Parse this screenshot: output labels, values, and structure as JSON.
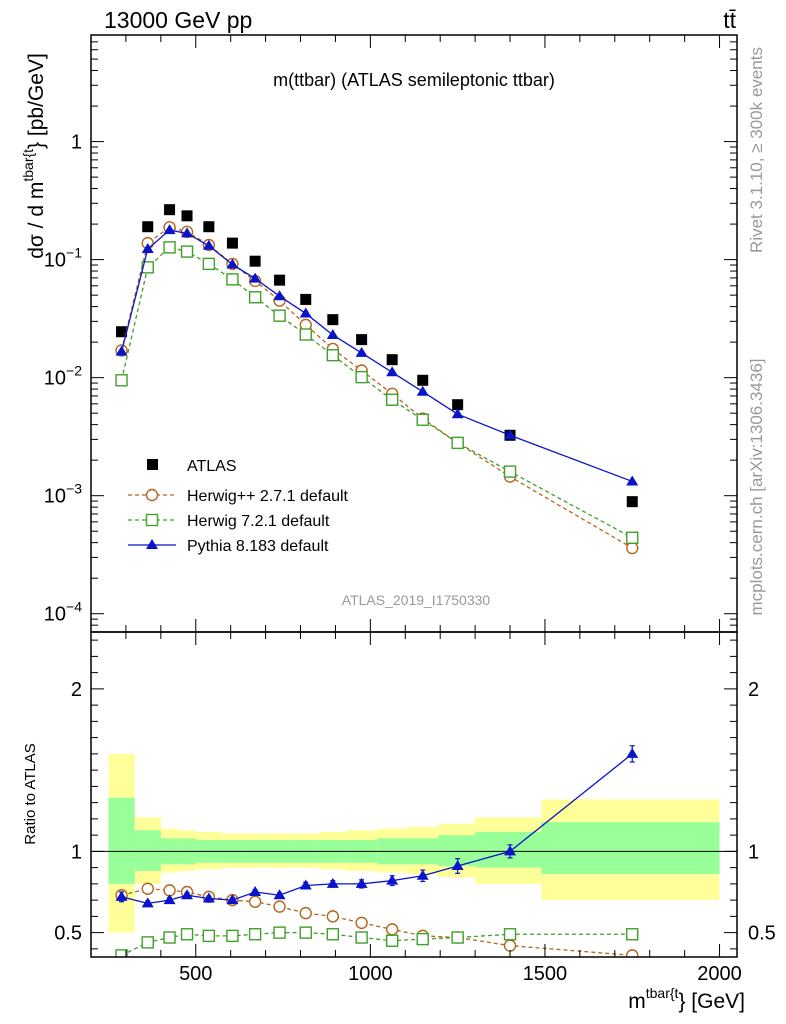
{
  "header": {
    "energy_label": "13000 GeV pp",
    "process_label": "tt̄",
    "side_rivet": "Rivet 3.1.10, ≥ 300k events",
    "side_mcplots": "mcplots.cern.ch [arXiv:1306.3436]"
  },
  "colors": {
    "atlas": "#000000",
    "herwigpp": "#b5651d",
    "herwig7": "#3fa02a",
    "pythia": "#0a14c8",
    "band_stat": "#99ff99",
    "band_syst": "#ffff99",
    "analysis_id": "#999999"
  },
  "chart_data": [
    {
      "type": "scatter",
      "title": "m(ttbar) (ATLAS semileptonic ttbar)",
      "analysis_id": "ATLAS_2019_I1750330",
      "yscale": "log",
      "ylabel": "dσ / d m^{tbar{t}} [pb/GeV]",
      "ylabel_main": "dσ / d m",
      "ylabel_sup": "tbar{t",
      "ylabel_unit": "} [pb/GeV]",
      "xlim": [
        200,
        2050
      ],
      "ylim": [
        7e-05,
        8
      ],
      "y_ticks": [
        {
          "value": 0.0001,
          "base": "10",
          "exp": "−4"
        },
        {
          "value": 0.001,
          "base": "10",
          "exp": "−3"
        },
        {
          "value": 0.01,
          "base": "10",
          "exp": "−2"
        },
        {
          "value": 0.1,
          "base": "10",
          "exp": "−1"
        },
        {
          "value": 1,
          "base": "1",
          "exp": ""
        }
      ],
      "legend_position": "lower-left",
      "x": [
        287.5,
        362.5,
        425,
        475,
        537.5,
        605,
        670,
        740,
        815,
        892.5,
        975,
        1062.5,
        1150,
        1250,
        1400,
        1750
      ],
      "series": [
        {
          "name": "ATLAS",
          "key": "atlas",
          "marker": "filled-square",
          "line": "none",
          "values": [
            0.0245,
            0.19,
            0.265,
            0.235,
            0.19,
            0.138,
            0.097,
            0.067,
            0.046,
            0.031,
            0.021,
            0.0142,
            0.0095,
            0.0059,
            0.00325,
            0.00089
          ]
        },
        {
          "name": "Herwig++ 2.7.1 default",
          "key": "herwigpp",
          "marker": "open-circle",
          "line": "dashed",
          "values": [
            0.017,
            0.138,
            0.188,
            0.172,
            0.133,
            0.092,
            0.066,
            0.045,
            0.028,
            0.0175,
            0.0115,
            0.0073,
            0.0045,
            0.0028,
            0.00145,
            0.00036
          ]
        },
        {
          "name": "Herwig 7.2.1 default",
          "key": "herwig7",
          "marker": "open-square",
          "line": "dashed",
          "values": [
            0.0095,
            0.086,
            0.127,
            0.117,
            0.092,
            0.068,
            0.048,
            0.0335,
            0.0232,
            0.0155,
            0.0101,
            0.0065,
            0.0044,
            0.0028,
            0.0016,
            0.00044
          ]
        },
        {
          "name": "Pythia 8.183 default",
          "key": "pythia",
          "marker": "filled-triangle",
          "line": "solid",
          "values": [
            0.0166,
            0.123,
            0.178,
            0.167,
            0.131,
            0.091,
            0.069,
            0.049,
            0.035,
            0.023,
            0.0162,
            0.0111,
            0.0076,
            0.0049,
            0.00325,
            0.00132
          ]
        }
      ]
    },
    {
      "type": "scatter",
      "ylabel": "Ratio to ATLAS",
      "xlabel_main": "m",
      "xlabel_sup": "tbar{t",
      "xlabel_unit": "} [GeV]",
      "xlim": [
        200,
        2050
      ],
      "ylim": [
        0.35,
        2.35
      ],
      "y_ticks": [
        0.5,
        1,
        2
      ],
      "y_tick_labels": [
        "0.5",
        "1",
        "2"
      ],
      "x_ticks": [
        500,
        1000,
        1500,
        2000
      ],
      "x_tick_labels": [
        "500",
        "1000",
        "1500",
        "2000"
      ],
      "reference_line": 1,
      "bins": [
        {
          "lo": 250,
          "hi": 325,
          "syst": [
            0.5,
            1.6
          ],
          "stat": [
            0.8,
            1.33
          ]
        },
        {
          "lo": 325,
          "hi": 400,
          "syst": [
            0.8,
            1.21
          ],
          "stat": [
            0.88,
            1.13
          ]
        },
        {
          "lo": 400,
          "hi": 450,
          "syst": [
            0.87,
            1.14
          ],
          "stat": [
            0.92,
            1.08
          ]
        },
        {
          "lo": 450,
          "hi": 500,
          "syst": [
            0.88,
            1.13
          ],
          "stat": [
            0.92,
            1.08
          ]
        },
        {
          "lo": 500,
          "hi": 575,
          "syst": [
            0.89,
            1.12
          ],
          "stat": [
            0.93,
            1.07
          ]
        },
        {
          "lo": 575,
          "hi": 635,
          "syst": [
            0.9,
            1.11
          ],
          "stat": [
            0.93,
            1.07
          ]
        },
        {
          "lo": 635,
          "hi": 705,
          "syst": [
            0.9,
            1.11
          ],
          "stat": [
            0.93,
            1.07
          ]
        },
        {
          "lo": 705,
          "hi": 775,
          "syst": [
            0.9,
            1.11
          ],
          "stat": [
            0.93,
            1.07
          ]
        },
        {
          "lo": 775,
          "hi": 855,
          "syst": [
            0.9,
            1.11
          ],
          "stat": [
            0.93,
            1.07
          ]
        },
        {
          "lo": 855,
          "hi": 930,
          "syst": [
            0.89,
            1.12
          ],
          "stat": [
            0.93,
            1.07
          ]
        },
        {
          "lo": 930,
          "hi": 1020,
          "syst": [
            0.88,
            1.13
          ],
          "stat": [
            0.93,
            1.07
          ]
        },
        {
          "lo": 1020,
          "hi": 1105,
          "syst": [
            0.87,
            1.14
          ],
          "stat": [
            0.92,
            1.08
          ]
        },
        {
          "lo": 1105,
          "hi": 1195,
          "syst": [
            0.86,
            1.15
          ],
          "stat": [
            0.92,
            1.08
          ]
        },
        {
          "lo": 1195,
          "hi": 1300,
          "syst": [
            0.84,
            1.17
          ],
          "stat": [
            0.91,
            1.1
          ]
        },
        {
          "lo": 1300,
          "hi": 1490,
          "syst": [
            0.8,
            1.21
          ],
          "stat": [
            0.9,
            1.12
          ]
        },
        {
          "lo": 1490,
          "hi": 2000,
          "syst": [
            0.7,
            1.32
          ],
          "stat": [
            0.86,
            1.18
          ]
        }
      ],
      "x": [
        287.5,
        362.5,
        425,
        475,
        537.5,
        605,
        670,
        740,
        815,
        892.5,
        975,
        1062.5,
        1150,
        1250,
        1400,
        1750
      ],
      "series": [
        {
          "name": "Herwig++ 2.7.1 default",
          "key": "herwigpp",
          "marker": "open-circle",
          "line": "dashed",
          "values": [
            0.73,
            0.77,
            0.76,
            0.75,
            0.72,
            0.7,
            0.69,
            0.66,
            0.62,
            0.6,
            0.56,
            0.52,
            0.48,
            0.47,
            0.42,
            0.36
          ]
        },
        {
          "name": "Herwig 7.2.1 default",
          "key": "herwig7",
          "marker": "open-square",
          "line": "dashed",
          "values": [
            0.36,
            0.44,
            0.47,
            0.49,
            0.48,
            0.48,
            0.49,
            0.5,
            0.5,
            0.49,
            0.47,
            0.45,
            0.46,
            0.47,
            0.49,
            0.49
          ]
        },
        {
          "name": "Pythia 8.183 default",
          "key": "pythia",
          "marker": "filled-triangle",
          "line": "solid",
          "values": [
            0.72,
            0.68,
            0.7,
            0.73,
            0.71,
            0.7,
            0.75,
            0.73,
            0.79,
            0.8,
            0.8,
            0.82,
            0.85,
            0.91,
            1.0,
            1.6
          ],
          "errors": [
            0.03,
            0.015,
            0.015,
            0.015,
            0.015,
            0.015,
            0.015,
            0.015,
            0.02,
            0.02,
            0.025,
            0.03,
            0.035,
            0.045,
            0.04,
            0.05
          ]
        }
      ]
    }
  ]
}
